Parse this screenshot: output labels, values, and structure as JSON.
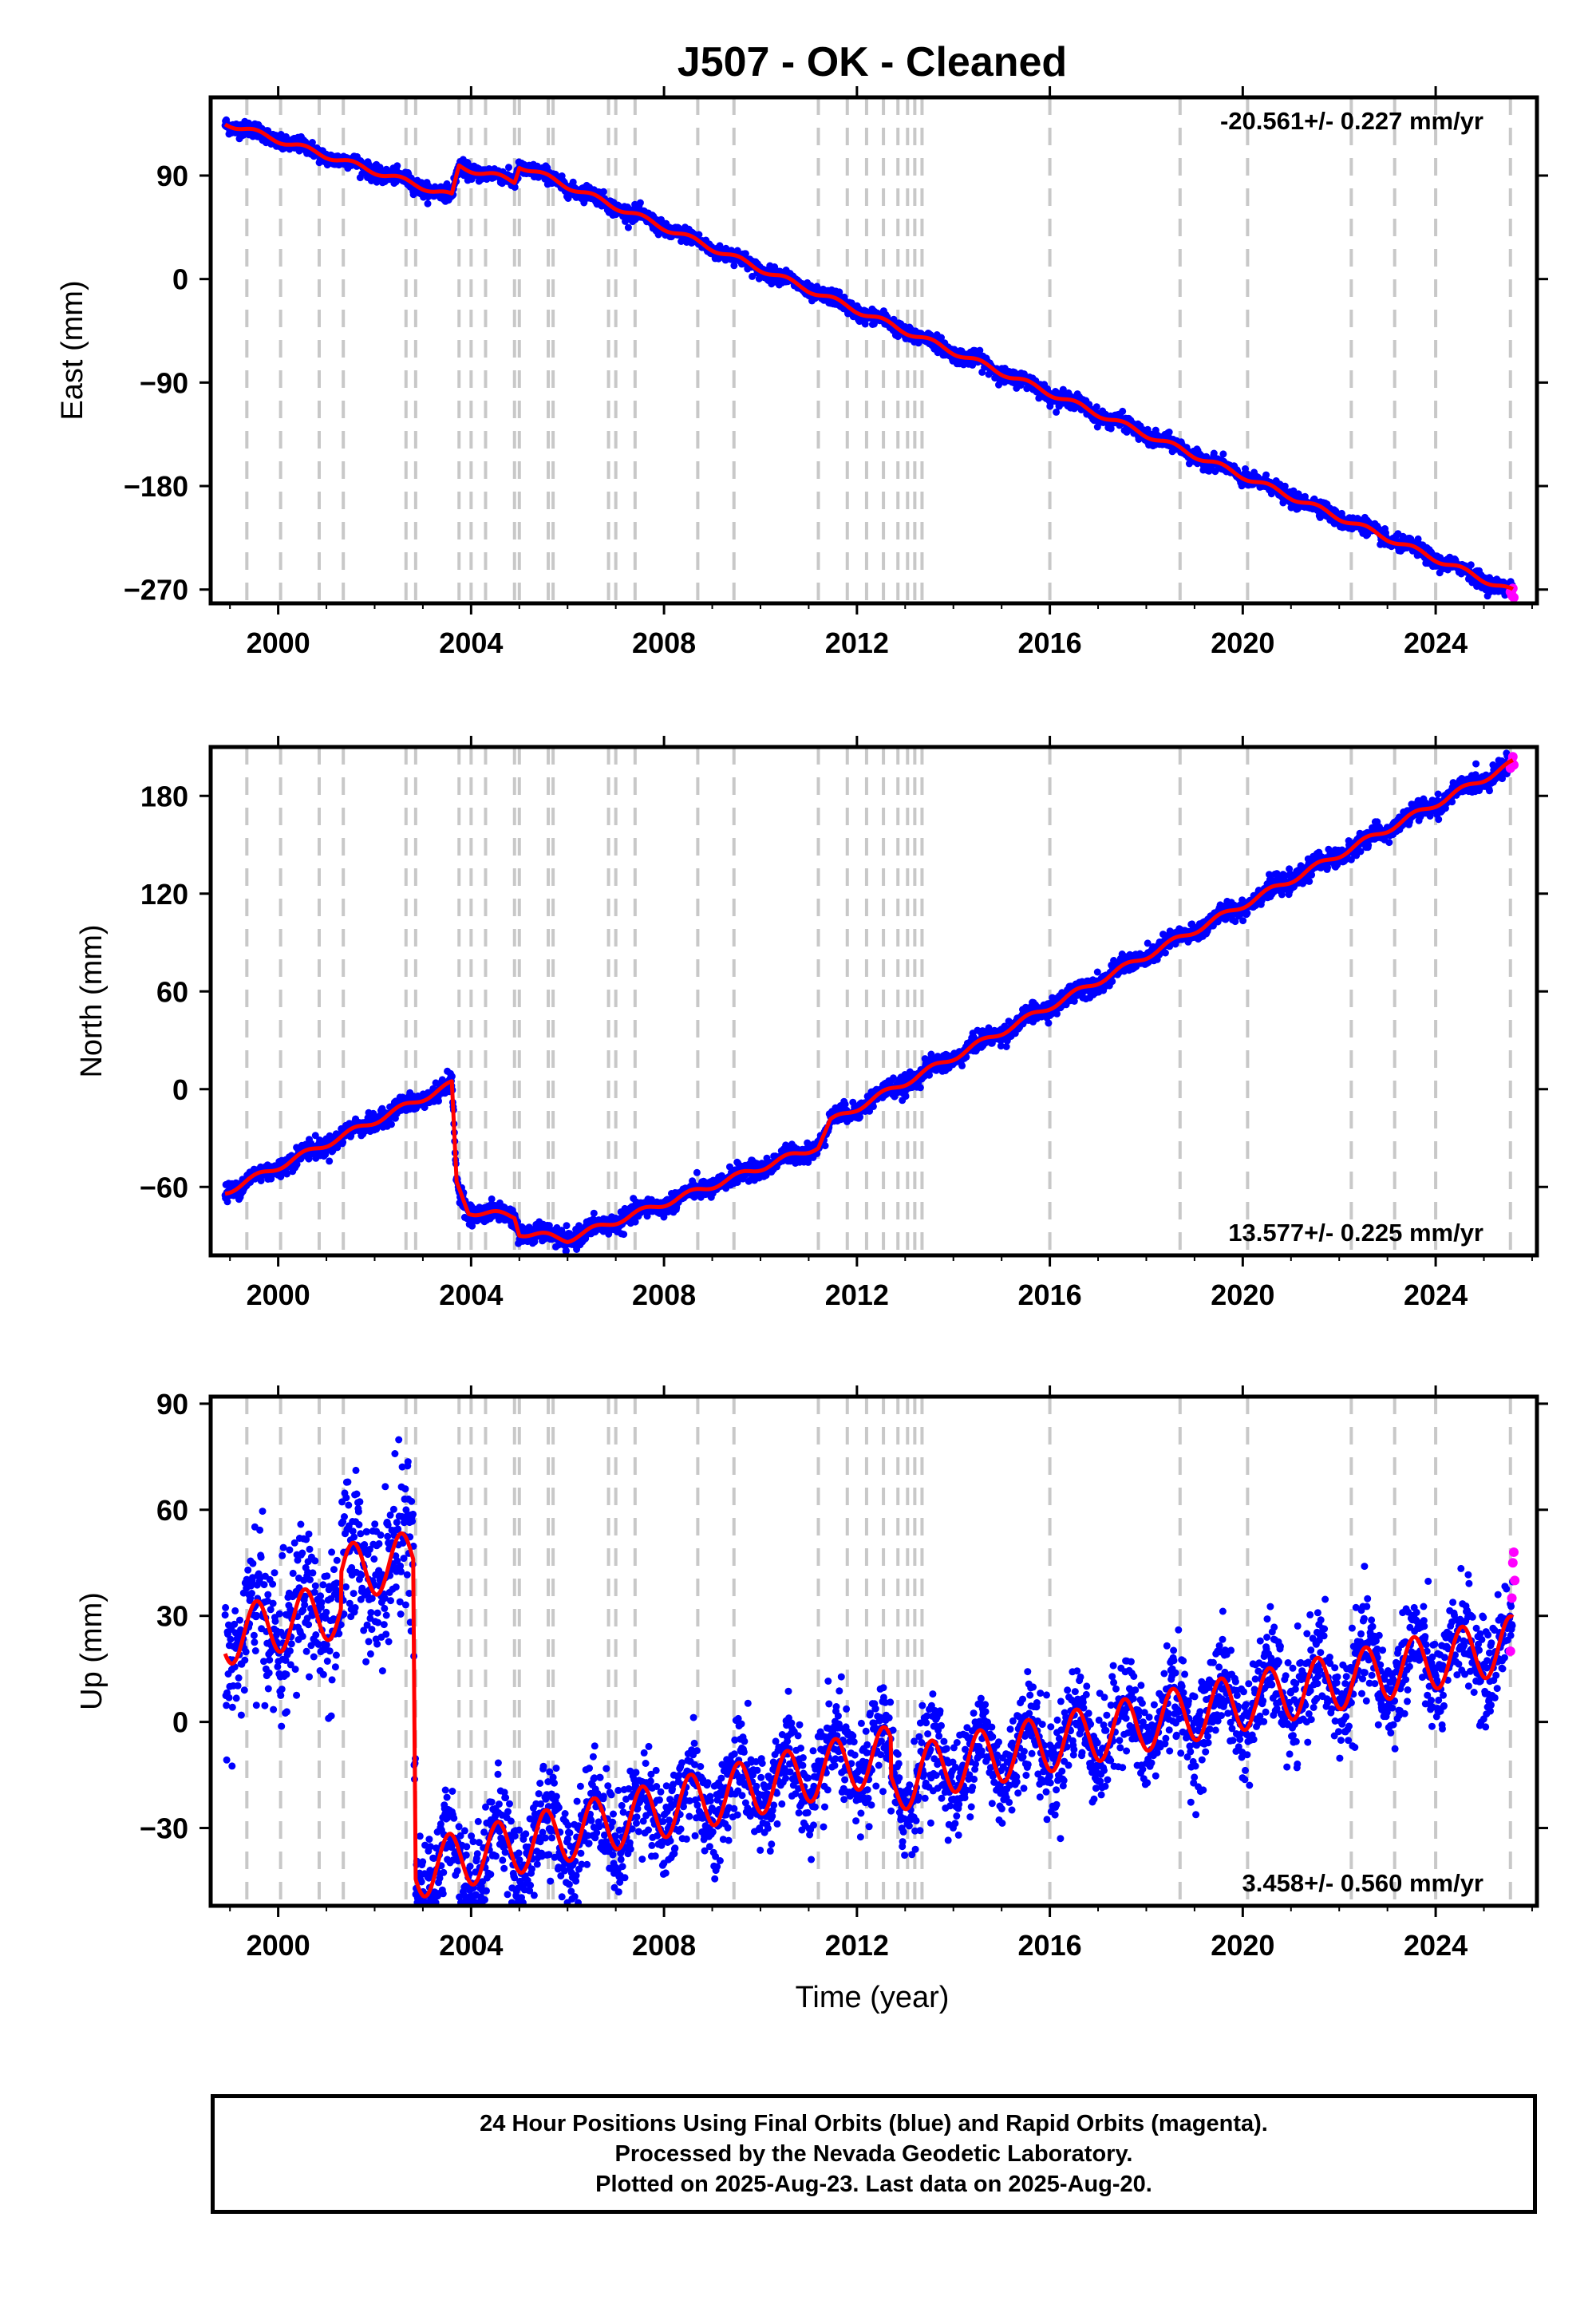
{
  "colors": {
    "final_orbits": "#0000ff",
    "rapid_orbits": "#ff00ff",
    "model": "#ff0000",
    "event_lines": "#c8c8c8",
    "frame": "#000000"
  },
  "footer": {
    "line1": "24 Hour Positions Using Final Orbits (blue) and Rapid Orbits (magenta).",
    "line2": "Processed by the Nevada Geodetic Laboratory.",
    "line3": "Plotted on 2025-Aug-23. Last data on 2025-Aug-20."
  },
  "chart_data": [
    {
      "type": "scatter",
      "title": "J507  - OK - Cleaned",
      "ylabel": "East (mm)",
      "xlabel": "",
      "xlim": [
        1998.6,
        2026.1
      ],
      "ylim": [
        -282,
        158
      ],
      "xticks": [
        2000,
        2004,
        2008,
        2012,
        2016,
        2020,
        2024
      ],
      "yticks": [
        -270,
        -180,
        -90,
        0,
        90
      ],
      "rate_text": "-20.561+/- 0.227 mm/yr",
      "rate_position": "top-right",
      "grid": false,
      "event_lines": [
        1999.35,
        2000.05,
        2000.85,
        2001.35,
        2002.65,
        2002.85,
        2003.75,
        2004.0,
        2004.3,
        2004.9,
        2005.0,
        2005.6,
        2005.7,
        2006.85,
        2007.0,
        2007.4,
        2008.7,
        2009.45,
        2011.2,
        2011.8,
        2012.2,
        2012.55,
        2012.85,
        2013.05,
        2013.2,
        2013.35,
        2016.0,
        2018.7,
        2020.1,
        2022.25,
        2023.15,
        2024.0,
        2025.55
      ],
      "segments": [
        {
          "x": [
            1998.9,
            2003.6
          ],
          "y": [
            136,
            72
          ]
        },
        {
          "x": [
            2003.6,
            2003.75
          ],
          "y": [
            72,
            98
          ]
        },
        {
          "x": [
            2003.75,
            2004.9
          ],
          "y": [
            98,
            85
          ]
        },
        {
          "x": [
            2004.9,
            2005.0
          ],
          "y": [
            85,
            99
          ]
        },
        {
          "x": [
            2005.0,
            2025.6
          ],
          "y": [
            99,
            -272
          ]
        }
      ],
      "seasonal_amp": 2.5,
      "scatter_noise": 3.2,
      "rapid_points": {
        "x": [
          2025.55,
          2025.58,
          2025.6,
          2025.62
        ],
        "y": [
          -272,
          -275,
          -269,
          -277
        ]
      }
    },
    {
      "type": "scatter",
      "title": "",
      "ylabel": "North (mm)",
      "xlabel": "",
      "xlim": [
        1998.6,
        2026.1
      ],
      "ylim": [
        -102,
        210
      ],
      "xticks": [
        2000,
        2004,
        2008,
        2012,
        2016,
        2020,
        2024
      ],
      "yticks": [
        -60,
        0,
        60,
        120,
        180
      ],
      "rate_text": "13.577+/- 0.225 mm/yr",
      "rate_position": "bottom-right",
      "grid": false,
      "event_lines": [
        1999.35,
        2000.05,
        2000.85,
        2001.35,
        2002.65,
        2002.85,
        2003.75,
        2004.0,
        2004.3,
        2004.9,
        2005.0,
        2005.6,
        2005.7,
        2006.85,
        2007.0,
        2007.4,
        2008.7,
        2009.45,
        2011.2,
        2011.8,
        2012.2,
        2012.55,
        2012.85,
        2013.05,
        2013.2,
        2013.35,
        2016.0,
        2018.7,
        2020.1,
        2022.25,
        2023.15,
        2024.0,
        2025.55
      ],
      "segments": [
        {
          "x": [
            1998.9,
            2003.6
          ],
          "y": [
            -63,
            3
          ]
        },
        {
          "x": [
            2003.6,
            2003.7
          ],
          "y": [
            3,
            -58
          ]
        },
        {
          "x": [
            2003.7,
            2003.95
          ],
          "y": [
            -58,
            -75
          ]
        },
        {
          "x": [
            2003.95,
            2004.9
          ],
          "y": [
            -75,
            -78
          ]
        },
        {
          "x": [
            2004.9,
            2005.0
          ],
          "y": [
            -78,
            -88
          ]
        },
        {
          "x": [
            2005.0,
            2006.0
          ],
          "y": [
            -88,
            -92
          ]
        },
        {
          "x": [
            2006.0,
            2011.2
          ],
          "y": [
            -92,
            -35
          ]
        },
        {
          "x": [
            2011.2,
            2011.45
          ],
          "y": [
            -35,
            -20
          ]
        },
        {
          "x": [
            2011.45,
            2025.6
          ],
          "y": [
            -20,
            200
          ]
        }
      ],
      "seasonal_amp": 2.0,
      "scatter_noise": 2.8,
      "rapid_points": {
        "x": [
          2025.55,
          2025.58,
          2025.6,
          2025.62
        ],
        "y": [
          197,
          201,
          204,
          199
        ]
      }
    },
    {
      "type": "scatter",
      "title": "",
      "ylabel": "Up (mm)",
      "xlabel": "Time (year)",
      "xlim": [
        1998.6,
        2026.1
      ],
      "ylim": [
        -52,
        92
      ],
      "xticks": [
        2000,
        2004,
        2008,
        2012,
        2016,
        2020,
        2024
      ],
      "yticks": [
        -30,
        0,
        30,
        60,
        90
      ],
      "rate_text": "3.458+/- 0.560 mm/yr",
      "rate_position": "bottom-right",
      "grid": false,
      "event_lines": [
        1999.35,
        2000.05,
        2000.85,
        2001.35,
        2002.65,
        2002.85,
        2003.75,
        2004.0,
        2004.3,
        2004.9,
        2005.0,
        2005.6,
        2005.7,
        2006.85,
        2007.0,
        2007.4,
        2008.7,
        2009.45,
        2011.2,
        2011.8,
        2012.2,
        2012.55,
        2012.85,
        2013.05,
        2013.2,
        2013.35,
        2016.0,
        2018.7,
        2020.1,
        2022.25,
        2023.15,
        2024.0,
        2025.55
      ],
      "segments": [
        {
          "x": [
            1998.9,
            2001.3
          ],
          "y": [
            24,
            32
          ]
        },
        {
          "x": [
            2001.3,
            2002.8
          ],
          "y": [
            42,
            46
          ]
        },
        {
          "x": [
            2002.8,
            2002.85
          ],
          "y": [
            46,
            -42
          ]
        },
        {
          "x": [
            2002.85,
            2012.7
          ],
          "y": [
            -42,
            -9
          ]
        },
        {
          "x": [
            2012.7,
            2013.3
          ],
          "y": [
            -20,
            -14
          ]
        },
        {
          "x": [
            2013.3,
            2025.6
          ],
          "y": [
            -14,
            22
          ]
        }
      ],
      "seasonal_amp": 8.0,
      "scatter_noise": 7.0,
      "rapid_points": {
        "x": [
          2025.55,
          2025.58,
          2025.6,
          2025.62,
          2025.64
        ],
        "y": [
          20,
          35,
          45,
          48,
          40
        ]
      }
    }
  ]
}
